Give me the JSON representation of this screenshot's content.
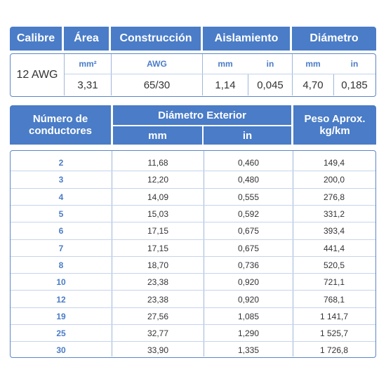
{
  "colors": {
    "header_bg": "#4a7cc7",
    "unit_text": "#4a7cc7",
    "border": "#5a86c8"
  },
  "top_headers": {
    "calibre": "Calibre",
    "area": "Área",
    "construccion": "Construcción",
    "aislamiento": "Aislamiento",
    "diametro": "Diámetro"
  },
  "units": {
    "area": "mm²",
    "construccion": "AWG",
    "aislamiento_mm": "mm",
    "aislamiento_in": "in",
    "diametro_mm": "mm",
    "diametro_in": "in"
  },
  "values": {
    "calibre": "12 AWG",
    "area": "3,31",
    "construccion": "65/30",
    "aislamiento_mm": "1,14",
    "aislamiento_in": "0,045",
    "diametro_mm": "4,70",
    "diametro_in": "0,185"
  },
  "table_headers": {
    "numero_line1": "Número de",
    "numero_line2": "conductores",
    "diametro_exterior": "Diámetro Exterior",
    "mm": "mm",
    "in": "in",
    "peso_line1": "Peso Aprox.",
    "peso_line2": "kg/km"
  },
  "rows": [
    {
      "n": "2",
      "mm": "11,68",
      "in": "0,460",
      "peso": "149,4"
    },
    {
      "n": "3",
      "mm": "12,20",
      "in": "0,480",
      "peso": "200,0"
    },
    {
      "n": "4",
      "mm": "14,09",
      "in": "0,555",
      "peso": "276,8"
    },
    {
      "n": "5",
      "mm": "15,03",
      "in": "0,592",
      "peso": "331,2"
    },
    {
      "n": "6",
      "mm": "17,15",
      "in": "0,675",
      "peso": "393,4"
    },
    {
      "n": "7",
      "mm": "17,15",
      "in": "0,675",
      "peso": "441,4"
    },
    {
      "n": "8",
      "mm": "18,70",
      "in": "0,736",
      "peso": "520,5"
    },
    {
      "n": "10",
      "mm": "23,38",
      "in": "0,920",
      "peso": "721,1"
    },
    {
      "n": "12",
      "mm": "23,38",
      "in": "0,920",
      "peso": "768,1"
    },
    {
      "n": "19",
      "mm": "27,56",
      "in": "1,085",
      "peso": "1 141,7"
    },
    {
      "n": "25",
      "mm": "32,77",
      "in": "1,290",
      "peso": "1 525,7"
    },
    {
      "n": "30",
      "mm": "33,90",
      "in": "1,335",
      "peso": "1 726,8"
    }
  ]
}
